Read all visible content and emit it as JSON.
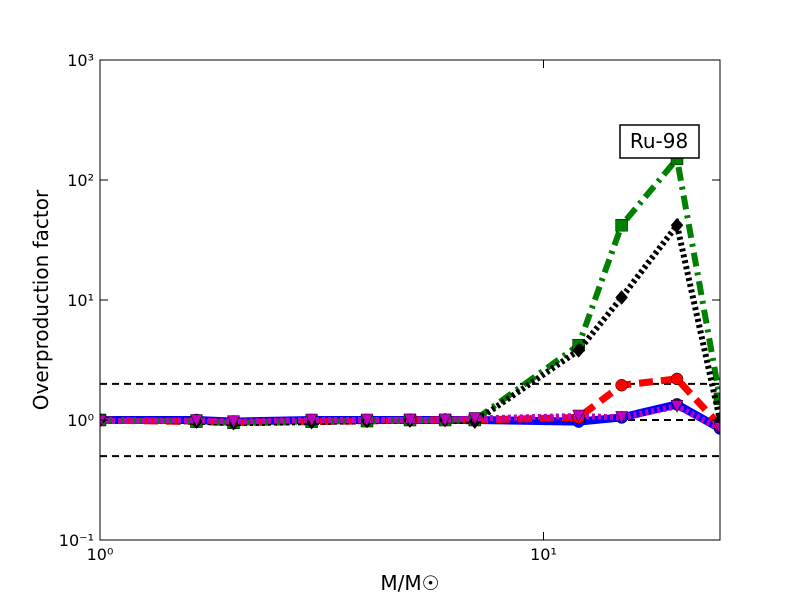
{
  "chart_data": {
    "type": "line",
    "xlabel": "M/M☉",
    "ylabel": "Overproduction factor",
    "annotation": "Ru-98",
    "xscale": "log",
    "yscale": "log",
    "xlim": [
      1,
      25
    ],
    "ylim": [
      0.1,
      1000
    ],
    "xticks": [
      {
        "value": 1,
        "label": "10⁰"
      },
      {
        "value": 10,
        "label": "10¹"
      }
    ],
    "yticks": [
      {
        "value": 0.1,
        "label": "10⁻¹"
      },
      {
        "value": 1,
        "label": "10⁰"
      },
      {
        "value": 10,
        "label": "10¹"
      },
      {
        "value": 100,
        "label": "10²"
      },
      {
        "value": 1000,
        "label": "10³"
      }
    ],
    "hlines": [
      0.5,
      1,
      2
    ],
    "x": [
      1,
      1.65,
      2,
      3,
      4,
      5,
      6,
      7,
      12,
      15,
      20,
      25
    ],
    "series": [
      {
        "color": "#0000ff",
        "linestyle": "solid",
        "marker": "circle",
        "values": [
          1,
          1,
          0.97,
          1,
          1,
          1,
          1,
          1,
          0.97,
          1.05,
          1.35,
          0.85
        ]
      },
      {
        "color": "#ff0000",
        "linestyle": "dashed",
        "marker": "circle",
        "values": [
          1,
          0.97,
          0.95,
          0.97,
          0.98,
          1,
          1,
          1,
          1.05,
          1.95,
          2.2,
          0.9
        ]
      },
      {
        "color": "#008000",
        "linestyle": "dashdot",
        "marker": "square",
        "values": [
          1,
          0.97,
          0.95,
          0.97,
          0.98,
          1,
          1,
          1,
          4.2,
          42,
          150,
          1.5
        ]
      },
      {
        "color": "#000000",
        "linestyle": "dotted",
        "marker": "diamond",
        "values": [
          1,
          0.97,
          0.94,
          0.96,
          0.98,
          0.99,
          1,
          0.97,
          3.8,
          10.5,
          42,
          1
        ]
      },
      {
        "color": "#bf00bf",
        "linestyle": "dotted",
        "marker": "triangle-down",
        "values": [
          0.98,
          0.99,
          0.97,
          1,
          1,
          1,
          1,
          1.03,
          1.08,
          1.05,
          1.3,
          0.85
        ]
      }
    ]
  }
}
